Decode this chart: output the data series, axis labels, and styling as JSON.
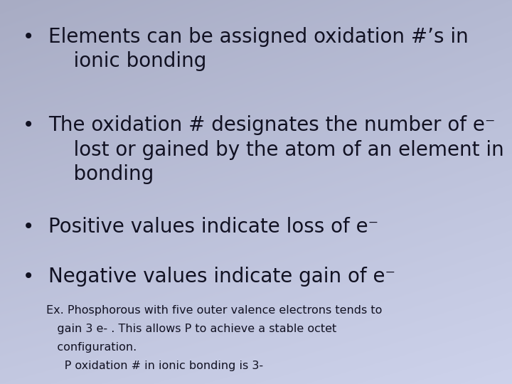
{
  "bg_color_topleft": [
    168,
    172,
    196
  ],
  "bg_color_topright": [
    180,
    185,
    210
  ],
  "bg_color_bottomleft": [
    195,
    200,
    225
  ],
  "bg_color_bottomright": [
    205,
    210,
    235
  ],
  "text_color": "#111122",
  "bullet_points": [
    "Elements can be assigned oxidation #’s in\n    ionic bonding",
    "The oxidation # designates the number of e⁻\n    lost or gained by the atom of an element in\n    bonding",
    "Positive values indicate loss of e⁻",
    "Negative values indicate gain of e⁻"
  ],
  "sub_text_lines": [
    "Ex. Phosphorous with five outer valence electrons tends to",
    "   gain 3 e- . This allows P to achieve a stable octet",
    "   configuration.",
    "     P oxidation # in ionic bonding is 3-"
  ],
  "bullet_fontsize": 20,
  "sub_fontsize": 11.5,
  "figwidth": 7.2,
  "figheight": 5.4,
  "dpi": 100
}
